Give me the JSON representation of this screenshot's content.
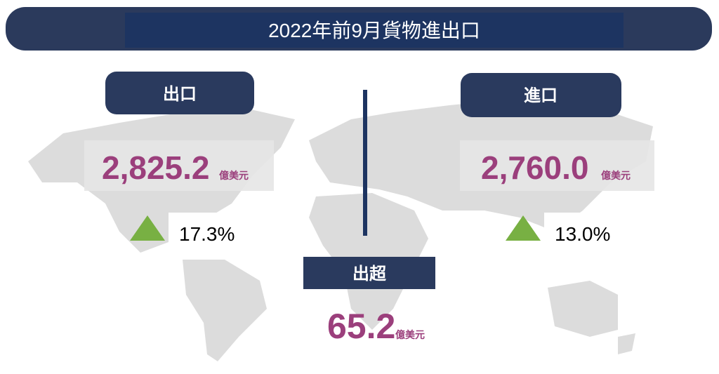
{
  "header": {
    "title": "2022年前9月貨物進出口"
  },
  "exports": {
    "label": "出口",
    "value": "2,825.2",
    "unit": "億美元",
    "growth": "17.3%"
  },
  "imports": {
    "label": "進口",
    "value": "2,760.0",
    "unit": "億美元",
    "growth": "13.0%"
  },
  "surplus": {
    "label": "出超",
    "value": "65.2",
    "unit": "億美元"
  }
}
